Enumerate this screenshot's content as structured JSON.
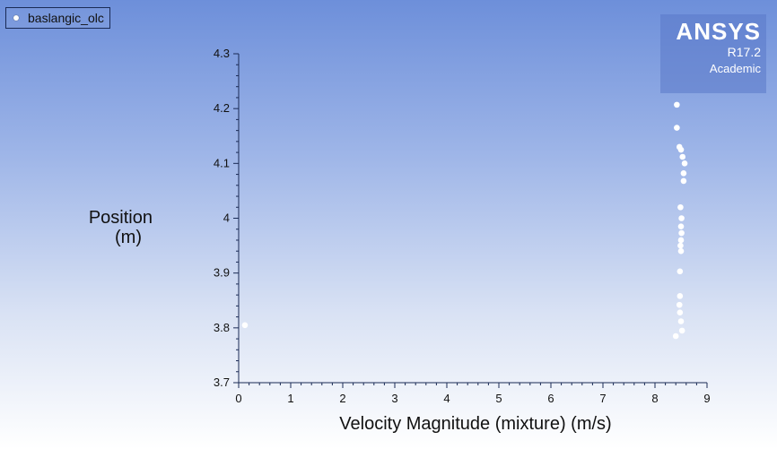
{
  "legend": {
    "label": "baslangic_olc"
  },
  "brand": {
    "name": "ANSYS",
    "version": "R17.2",
    "edition": "Academic"
  },
  "colors": {
    "marker": "#ffffff",
    "axis": "#1a2a55",
    "brand_bg": "#5a78c8"
  },
  "chart_data": {
    "type": "scatter",
    "title": "",
    "xlabel": "Velocity Magnitude (mixture)  (m/s)",
    "ylabel_lines": [
      "Position",
      "(m)"
    ],
    "xlim": [
      0,
      9
    ],
    "ylim": [
      3.7,
      4.3
    ],
    "xticks": [
      0,
      1,
      2,
      3,
      4,
      5,
      6,
      7,
      8,
      9
    ],
    "yticks": [
      3.7,
      3.8,
      3.9,
      4,
      4.1,
      4.2,
      4.3
    ],
    "xtick_labels": [
      "0",
      "1",
      "2",
      "3",
      "4",
      "5",
      "6",
      "7",
      "8",
      "9"
    ],
    "ytick_labels": [
      "3.7",
      "3.8",
      "3.9",
      "4",
      "4.1",
      "4.2",
      "4.3"
    ],
    "grid": false,
    "legend_position": "top-left",
    "series": [
      {
        "name": "baslangic_olc",
        "points": [
          {
            "x": 0.12,
            "y": 3.805
          },
          {
            "x": 8.4,
            "y": 3.785
          },
          {
            "x": 8.52,
            "y": 3.795
          },
          {
            "x": 8.5,
            "y": 3.812
          },
          {
            "x": 8.48,
            "y": 3.828
          },
          {
            "x": 8.47,
            "y": 3.842
          },
          {
            "x": 8.48,
            "y": 3.858
          },
          {
            "x": 8.48,
            "y": 3.903
          },
          {
            "x": 8.5,
            "y": 3.94
          },
          {
            "x": 8.49,
            "y": 3.95
          },
          {
            "x": 8.5,
            "y": 3.96
          },
          {
            "x": 8.51,
            "y": 3.973
          },
          {
            "x": 8.5,
            "y": 3.985
          },
          {
            "x": 8.51,
            "y": 4.0
          },
          {
            "x": 8.49,
            "y": 4.02
          },
          {
            "x": 8.55,
            "y": 4.068
          },
          {
            "x": 8.55,
            "y": 4.082
          },
          {
            "x": 8.57,
            "y": 4.1
          },
          {
            "x": 8.53,
            "y": 4.112
          },
          {
            "x": 8.5,
            "y": 4.125
          },
          {
            "x": 8.47,
            "y": 4.13
          },
          {
            "x": 8.42,
            "y": 4.165
          },
          {
            "x": 8.42,
            "y": 4.207
          }
        ]
      }
    ]
  }
}
